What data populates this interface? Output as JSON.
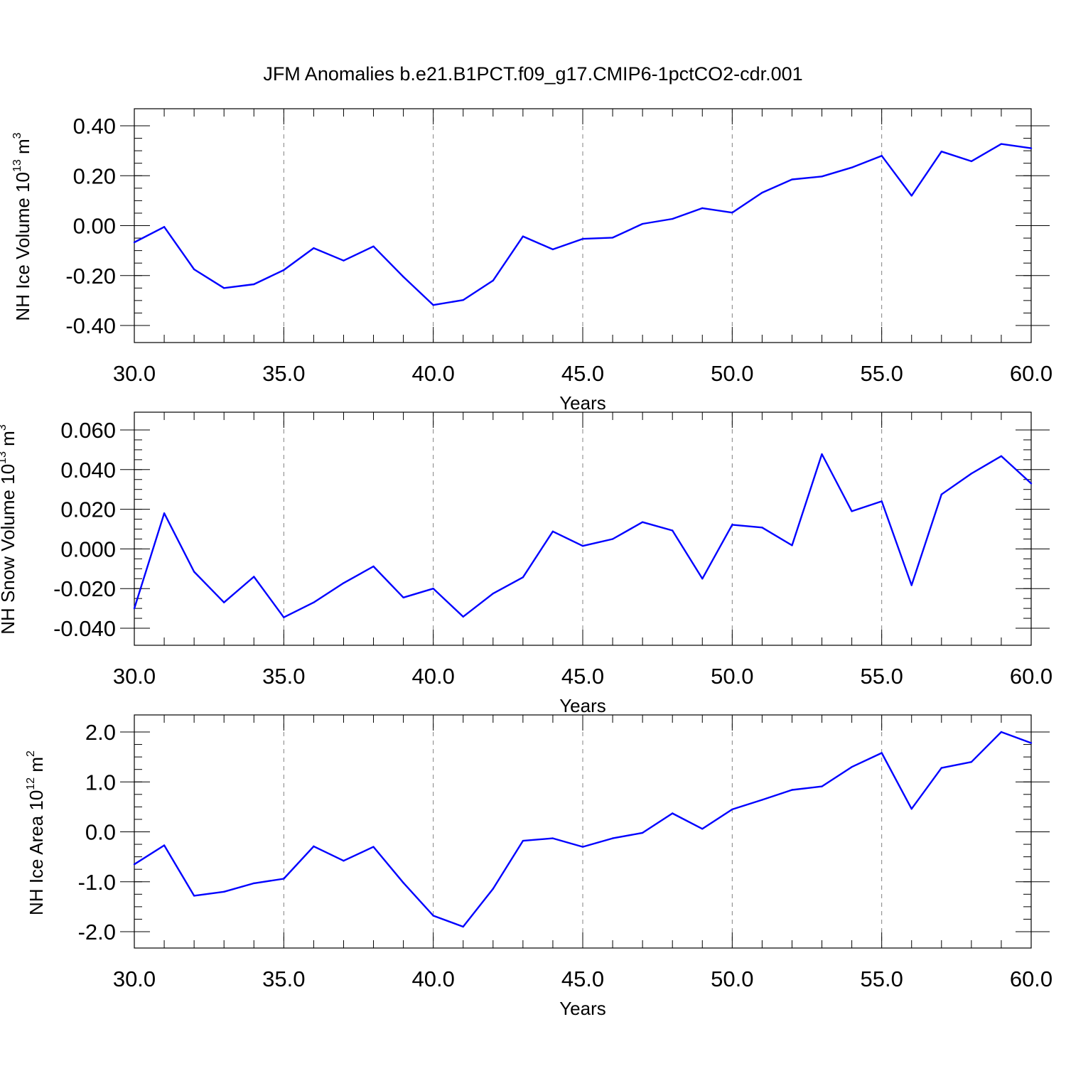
{
  "title": "JFM Anomalies b.e21.B1PCT.f09_g17.CMIP6-1pctCO2-cdr.001",
  "colors": {
    "line": "#0000ff",
    "axis": "#000000",
    "grid": "#808080",
    "background": "#ffffff"
  },
  "chart_data": [
    {
      "type": "line",
      "ylabel": {
        "text": "NH Ice Volume 10",
        "sup": "13",
        "unit": " m",
        "unit_sup": "3"
      },
      "xlabel": "Years",
      "xlim": [
        30,
        60
      ],
      "ylim": [
        -0.4,
        0.4
      ],
      "xticks": [
        "30.0",
        "35.0",
        "40.0",
        "45.0",
        "50.0",
        "55.0",
        "60.0"
      ],
      "yticks": [
        "0.40",
        "0.20",
        "0.00",
        "-0.20",
        "-0.40"
      ],
      "grid": "vertical dashed at major x ticks",
      "x": [
        30,
        31,
        32,
        33,
        34,
        35,
        36,
        37,
        38,
        39,
        40,
        41,
        42,
        43,
        44,
        45,
        46,
        47,
        48,
        49,
        50,
        51,
        52,
        53,
        54,
        55,
        56,
        57,
        58,
        59,
        60
      ],
      "values": [
        -0.067,
        -0.005,
        -0.175,
        -0.25,
        -0.235,
        -0.178,
        -0.09,
        -0.14,
        -0.083,
        -0.205,
        -0.318,
        -0.298,
        -0.22,
        -0.043,
        -0.095,
        -0.053,
        -0.048,
        0.007,
        0.027,
        0.07,
        0.052,
        0.132,
        0.185,
        0.197,
        0.233,
        0.28,
        0.12,
        0.297,
        0.258,
        0.327,
        0.31
      ]
    },
    {
      "type": "line",
      "ylabel": {
        "text": "NH Snow Volume 10",
        "sup": "13",
        "unit": " m",
        "unit_sup": "3"
      },
      "xlabel": "Years",
      "xlim": [
        30,
        60
      ],
      "ylim": [
        -0.04,
        0.06
      ],
      "xticks": [
        "30.0",
        "35.0",
        "40.0",
        "45.0",
        "50.0",
        "55.0",
        "60.0"
      ],
      "yticks": [
        "0.060",
        "0.040",
        "0.020",
        "0.000",
        "-0.020",
        "-0.040"
      ],
      "grid": "vertical dashed at major x ticks",
      "x": [
        30,
        31,
        32,
        33,
        34,
        35,
        36,
        37,
        38,
        39,
        40,
        41,
        42,
        43,
        44,
        45,
        46,
        47,
        48,
        49,
        50,
        51,
        52,
        53,
        54,
        55,
        56,
        57,
        58,
        59,
        60
      ],
      "values": [
        -0.03,
        0.018,
        -0.0115,
        -0.027,
        -0.014,
        -0.0345,
        -0.027,
        -0.0172,
        -0.0088,
        -0.0245,
        -0.02,
        -0.0342,
        -0.0225,
        -0.0143,
        0.0088,
        0.0015,
        0.005,
        0.0135,
        0.0093,
        -0.015,
        0.0122,
        0.0108,
        0.0018,
        0.0478,
        0.019,
        0.024,
        -0.0183,
        0.0275,
        0.038,
        0.0468,
        0.033
      ]
    },
    {
      "type": "line",
      "ylabel": {
        "text": "NH Ice Area 10",
        "sup": "12",
        "unit": " m",
        "unit_sup": "2"
      },
      "xlabel": "Years",
      "xlim": [
        30,
        60
      ],
      "ylim": [
        -2.0,
        2.0
      ],
      "xticks": [
        "30.0",
        "35.0",
        "40.0",
        "45.0",
        "50.0",
        "55.0",
        "60.0"
      ],
      "yticks": [
        "2.0",
        "1.0",
        "0.0",
        "-1.0",
        "-2.0"
      ],
      "grid": "vertical dashed at major x ticks",
      "x": [
        30,
        31,
        32,
        33,
        34,
        35,
        36,
        37,
        38,
        39,
        40,
        41,
        42,
        43,
        44,
        45,
        46,
        47,
        48,
        49,
        50,
        51,
        52,
        53,
        54,
        55,
        56,
        57,
        58,
        59,
        60
      ],
      "values": [
        -0.65,
        -0.27,
        -1.28,
        -1.2,
        -1.03,
        -0.94,
        -0.29,
        -0.58,
        -0.3,
        -1.02,
        -1.68,
        -1.9,
        -1.14,
        -0.18,
        -0.13,
        -0.3,
        -0.13,
        -0.02,
        0.37,
        0.06,
        0.45,
        0.64,
        0.84,
        0.91,
        1.3,
        1.58,
        0.46,
        1.28,
        1.4,
        2.0,
        1.78
      ]
    }
  ]
}
